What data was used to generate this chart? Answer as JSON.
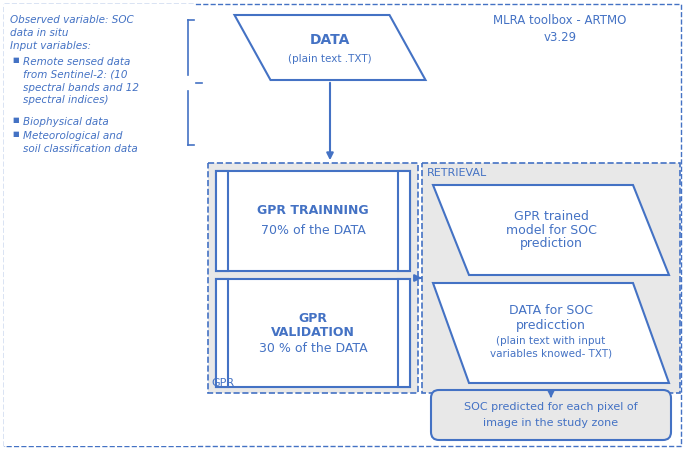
{
  "bg_color": "#ffffff",
  "outer_bg": "#f0f5fa",
  "border_color": "#4472c4",
  "gray_fill": "#e8e8e8",
  "title_text": "MLRA toolbox - ARTMO\nv3.29",
  "left_text_line1": "Observed variable: SOC",
  "left_text_line2": "data in situ",
  "left_text_line3": "Input variables:",
  "bullet_items": [
    "Remote sensed data\nfrom Sentinel-2: (10\nspectral bands and 12\nspectral indices)",
    "Biophysical data",
    "Meteorological and\nsoil classification data"
  ],
  "data_box_line1": "DATA",
  "data_box_line2": "(plain text .TXT)",
  "gpr_training_line1": "GPR TRAINNING",
  "gpr_training_line2": "70% of the DATA",
  "gpr_validation_line1": "GPR",
  "gpr_validation_line2": "VALIDATION",
  "gpr_validation_line3": "30 % of the DATA",
  "retrieval_label": "RETRIEVAL",
  "gpr_label": "GPR",
  "gpr_trained_line1": "GPR trained",
  "gpr_trained_line2": "model for SOC",
  "gpr_trained_line3": "prediction",
  "data_soc_line1": "DATA for SOC",
  "data_soc_line2": "predicction",
  "data_soc_line3": "(plain text with input",
  "data_soc_line4": "variables knowed- TXT)",
  "output_line1": "SOC predicted for each pixel of",
  "output_line2": "image in the study zone"
}
